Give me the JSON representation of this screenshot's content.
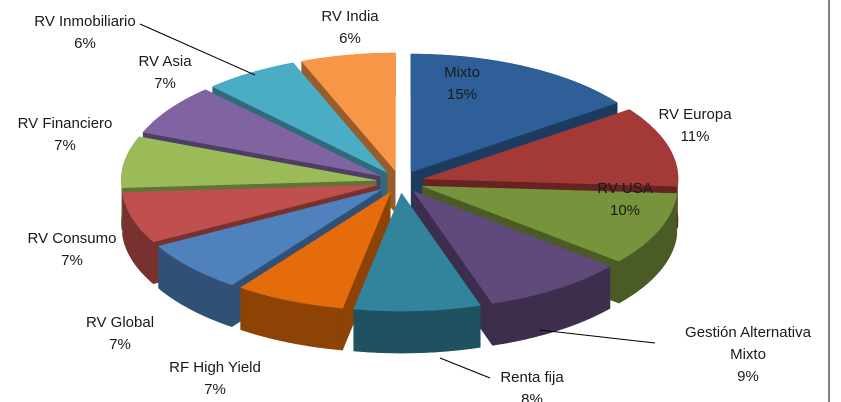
{
  "chart_data": {
    "type": "pie3d",
    "categories": [
      "Mixto",
      "RV Europa",
      "RV USA",
      "Gestión Alternativa Mixto",
      "Renta fija",
      "RF High Yield",
      "RV Global",
      "RV Consumo",
      "RV Financiero",
      "RV Asia",
      "RV Inmobiliario",
      "RV India"
    ],
    "values": [
      15,
      11,
      10,
      9,
      8,
      7,
      7,
      7,
      7,
      7,
      6,
      6
    ],
    "value_labels": [
      "15%",
      "11%",
      "10%",
      "9%",
      "8%",
      "7%",
      "7%",
      "7%",
      "7%",
      "7%",
      "6%",
      "6%"
    ],
    "colors": [
      "#2f5f98",
      "#a33a37",
      "#77933c",
      "#604a7b",
      "#31849b",
      "#e46c0a",
      "#4f81bd",
      "#c0504d",
      "#9bbb59",
      "#8064a2",
      "#4bacc6",
      "#f79646"
    ]
  }
}
